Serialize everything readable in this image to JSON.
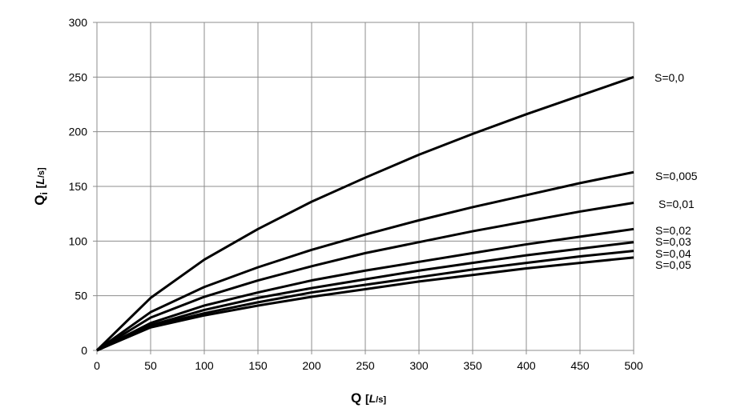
{
  "chart_data": {
    "type": "line",
    "title": "",
    "xlabel": {
      "main": "Q",
      "unit_open": "[",
      "unit_italic": "L",
      "unit_rest": "/s]"
    },
    "ylabel": {
      "main": "Q",
      "sub": "i",
      "unit_open": "[",
      "unit_italic": "L",
      "unit_rest": "/s]"
    },
    "xlim": [
      0,
      500
    ],
    "ylim": [
      0,
      300
    ],
    "grid": true,
    "xticks": [
      0,
      50,
      100,
      150,
      200,
      250,
      300,
      350,
      400,
      450,
      500
    ],
    "yticks": [
      0,
      50,
      100,
      150,
      200,
      250,
      300
    ],
    "x": [
      0,
      50,
      100,
      150,
      200,
      250,
      300,
      350,
      400,
      450,
      500
    ],
    "series": [
      {
        "name": "S=0,0",
        "values": [
          0,
          48,
          83,
          111,
          136,
          158,
          179,
          198,
          216,
          233,
          250
        ]
      },
      {
        "name": "S=0,005",
        "values": [
          0,
          35,
          58,
          76,
          92,
          106,
          119,
          131,
          142,
          153,
          163
        ]
      },
      {
        "name": "S=0,01",
        "values": [
          0,
          30,
          49,
          64,
          77,
          89,
          99,
          109,
          118,
          127,
          135
        ]
      },
      {
        "name": "S=0,02",
        "values": [
          0,
          25,
          41,
          53,
          64,
          73,
          81,
          89,
          97,
          104,
          111
        ]
      },
      {
        "name": "S=0,03",
        "values": [
          0,
          23,
          37,
          48,
          57,
          65,
          73,
          80,
          87,
          93,
          99
        ]
      },
      {
        "name": "S=0,04",
        "values": [
          0,
          22,
          34,
          44,
          53,
          60,
          67,
          74,
          80,
          86,
          91
        ]
      },
      {
        "name": "S=0,05",
        "values": [
          0,
          21,
          32,
          41,
          49,
          56,
          63,
          69,
          75,
          80,
          85
        ]
      }
    ],
    "legend": "right, labels at line ends"
  }
}
